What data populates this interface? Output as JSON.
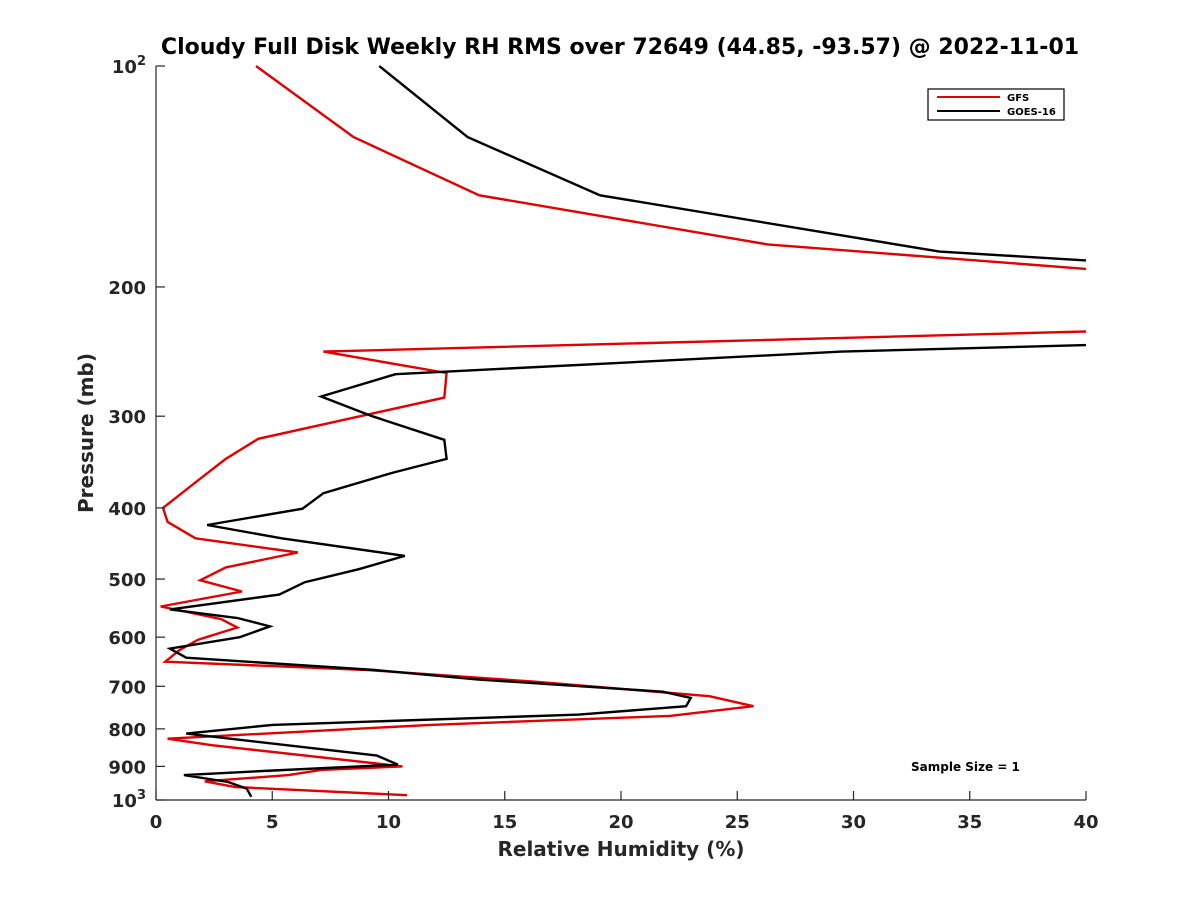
{
  "chart_data": {
    "type": "line",
    "title": "Cloudy Full Disk Weekly RH RMS over 72649 (44.85, -93.57) @ 2022-11-01",
    "xlabel": "Relative Humidity (%)",
    "ylabel": "Pressure (mb)",
    "xlim": [
      0,
      40
    ],
    "ylim": [
      100,
      1000
    ],
    "y_scale": "log",
    "y_reversed": true,
    "x_ticks": [
      "0",
      "5",
      "10",
      "15",
      "20",
      "25",
      "30",
      "35",
      "40"
    ],
    "y_ticks": [
      {
        "value": 100,
        "base": "10",
        "exp": "2"
      },
      {
        "value": 200,
        "label": "200"
      },
      {
        "value": 300,
        "label": "300"
      },
      {
        "value": 400,
        "label": "400"
      },
      {
        "value": 500,
        "label": "500"
      },
      {
        "value": 600,
        "label": "600"
      },
      {
        "value": 700,
        "label": "700"
      },
      {
        "value": 800,
        "label": "800"
      },
      {
        "value": 900,
        "label": "900"
      },
      {
        "value": 1000,
        "base": "10",
        "exp": "3"
      }
    ],
    "grid": false,
    "legend_position": "top-right",
    "annotation": "Sample Size = 1",
    "series": [
      {
        "name": "GFS",
        "color": "#e00000",
        "points": [
          [
            4.3,
            100
          ],
          [
            8.5,
            125
          ],
          [
            13.9,
            150
          ],
          [
            26.3,
            175
          ],
          [
            40,
            189
          ],
          [
            null,
            null
          ],
          [
            40,
            230
          ],
          [
            7.2,
            245
          ],
          [
            12.5,
            262
          ],
          [
            12.4,
            283
          ],
          [
            4.4,
            322
          ],
          [
            3.0,
            343
          ],
          [
            1.9,
            365
          ],
          [
            0.3,
            400
          ],
          [
            0.5,
            418
          ],
          [
            1.7,
            440
          ],
          [
            6.1,
            460
          ],
          [
            3.0,
            482
          ],
          [
            1.9,
            502
          ],
          [
            3.7,
            520
          ],
          [
            0.2,
            545
          ],
          [
            2.8,
            567
          ],
          [
            3.5,
            582
          ],
          [
            1.8,
            605
          ],
          [
            1.0,
            625
          ],
          [
            0.4,
            648
          ],
          [
            9.1,
            665
          ],
          [
            16.3,
            690
          ],
          [
            23.8,
            722
          ],
          [
            25.7,
            745
          ],
          [
            22.1,
            768
          ],
          [
            11.8,
            790
          ],
          [
            0.5,
            825
          ],
          [
            2.4,
            842
          ],
          [
            10.6,
            900
          ],
          [
            7.1,
            910
          ],
          [
            5.7,
            925
          ],
          [
            2.1,
            943
          ],
          [
            3.4,
            960
          ],
          [
            10.8,
            985
          ]
        ]
      },
      {
        "name": "GOES-16",
        "color": "#000000",
        "points": [
          [
            9.6,
            100
          ],
          [
            13.4,
            125
          ],
          [
            19.1,
            150
          ],
          [
            33.7,
            179
          ],
          [
            40,
            184
          ],
          [
            null,
            null
          ],
          [
            40,
            240
          ],
          [
            29.5,
            245
          ],
          [
            10.3,
            263
          ],
          [
            7.1,
            282
          ],
          [
            9.3,
            300
          ],
          [
            12.4,
            323
          ],
          [
            12.5,
            343
          ],
          [
            10.2,
            358
          ],
          [
            7.2,
            382
          ],
          [
            6.3,
            401
          ],
          [
            2.2,
            422
          ],
          [
            5.4,
            440
          ],
          [
            10.7,
            465
          ],
          [
            8.7,
            485
          ],
          [
            6.4,
            505
          ],
          [
            5.3,
            525
          ],
          [
            0.6,
            550
          ],
          [
            3.5,
            565
          ],
          [
            4.9,
            580
          ],
          [
            3.6,
            600
          ],
          [
            0.6,
            622
          ],
          [
            1.3,
            640
          ],
          [
            9.4,
            665
          ],
          [
            13.8,
            685
          ],
          [
            21.8,
            712
          ],
          [
            23.0,
            726
          ],
          [
            22.8,
            745
          ],
          [
            18.2,
            765
          ],
          [
            5.0,
            790
          ],
          [
            1.3,
            812
          ],
          [
            9.5,
            870
          ],
          [
            10.4,
            895
          ],
          [
            4.6,
            913
          ],
          [
            1.2,
            925
          ],
          [
            3.1,
            945
          ],
          [
            3.9,
            965
          ],
          [
            4.1,
            990
          ]
        ]
      }
    ]
  }
}
